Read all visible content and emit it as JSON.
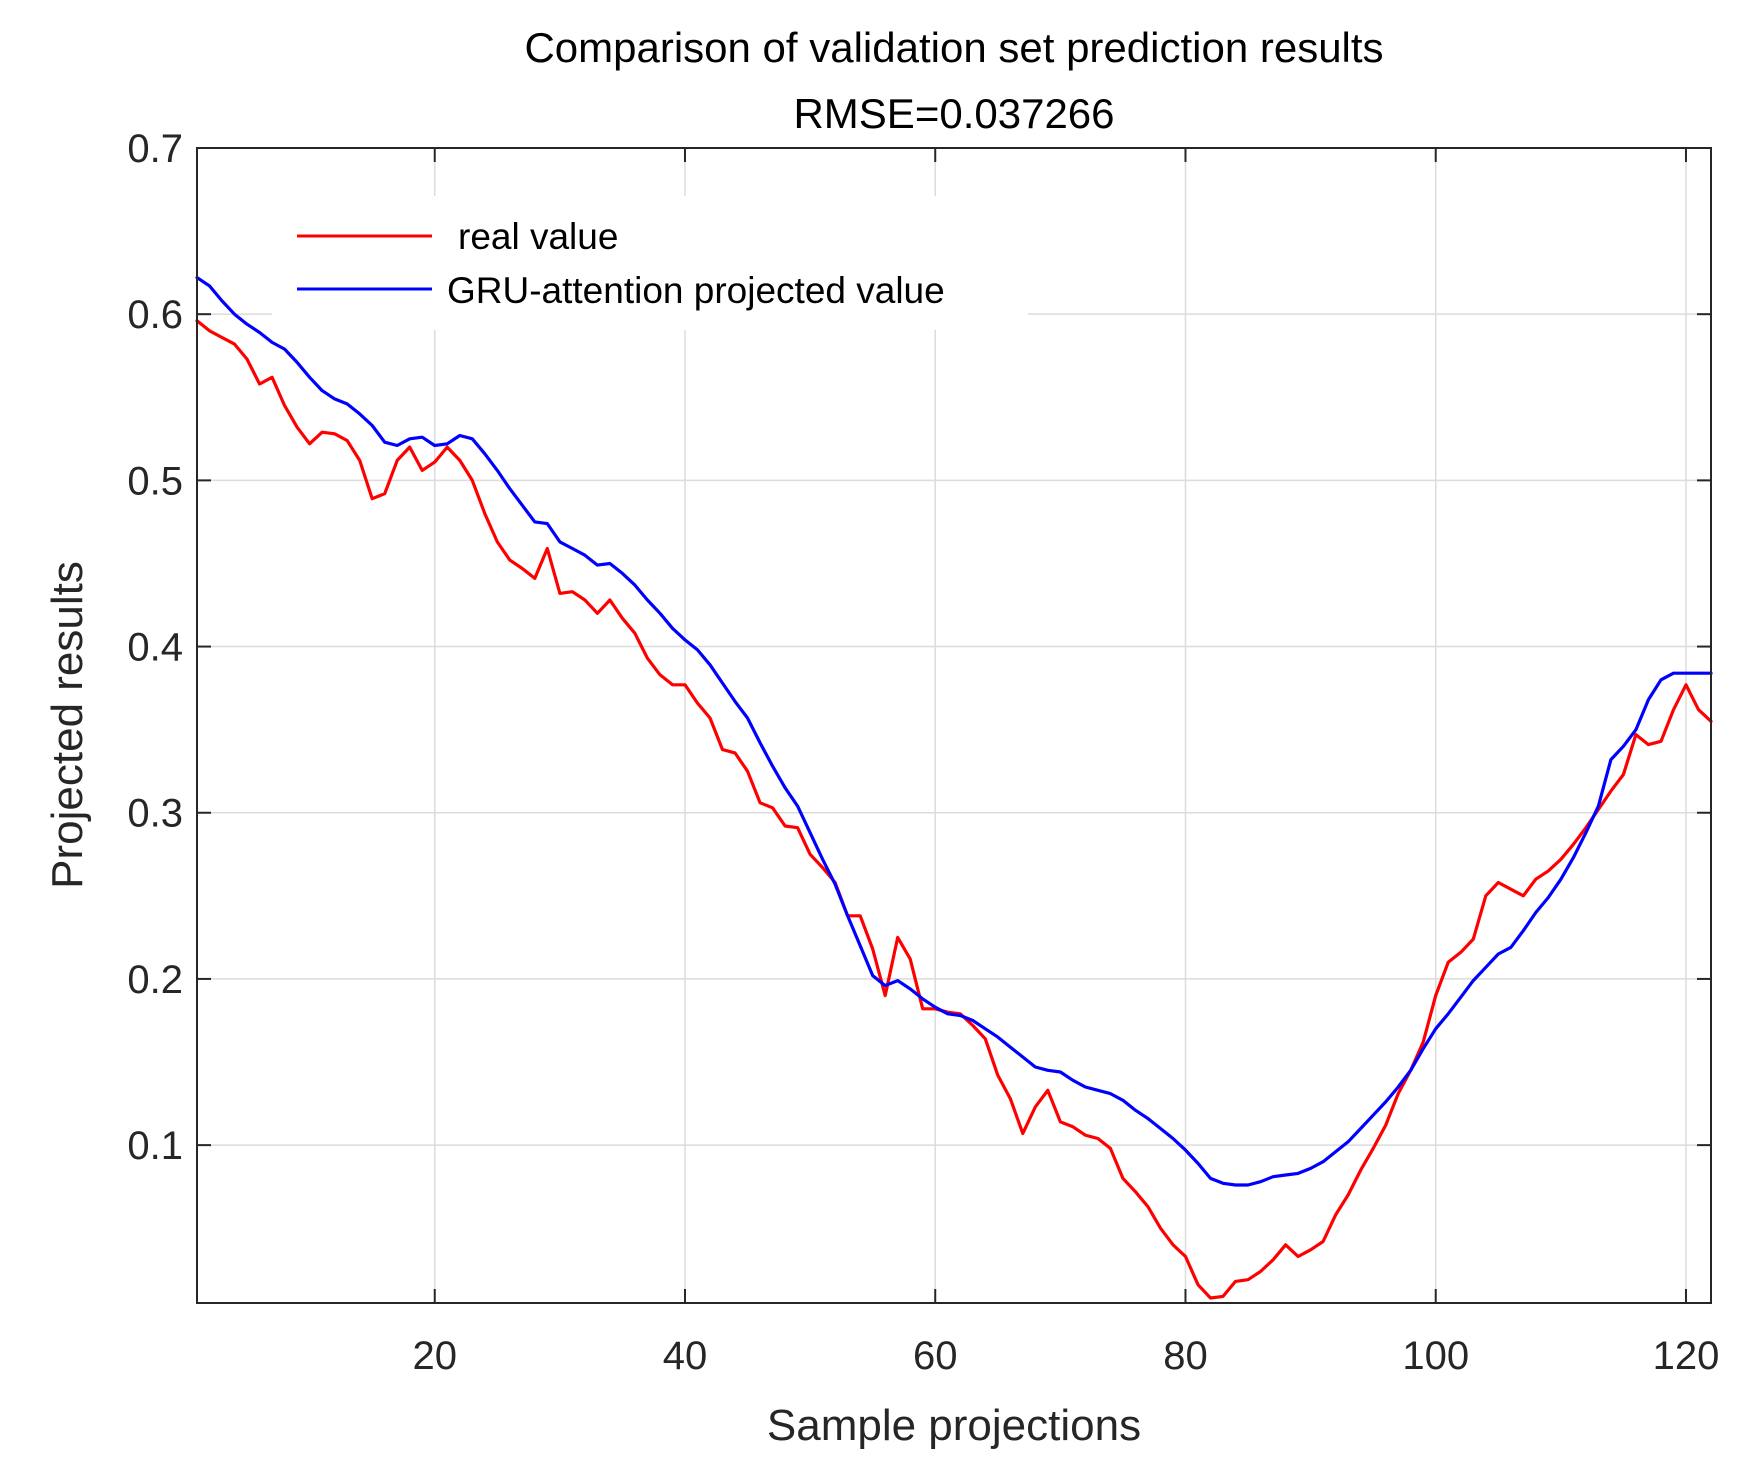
{
  "chart_data": {
    "type": "line",
    "title": "Comparison of validation set prediction results",
    "subtitle": "RMSE=0.037266",
    "xlabel": "Sample projections",
    "ylabel": "Projected results",
    "xlim": [
      1,
      122
    ],
    "ylim": [
      0.005,
      0.7
    ],
    "x_ticks": [
      20,
      40,
      60,
      80,
      100,
      120
    ],
    "y_ticks": [
      0.1,
      0.2,
      0.3,
      0.4,
      0.5,
      0.6,
      0.7
    ],
    "x_tick_labels": [
      "20",
      "40",
      "60",
      "80",
      "100",
      "120"
    ],
    "y_tick_labels": [
      "0.1",
      "0.2",
      "0.3",
      "0.4",
      "0.5",
      "0.6",
      "0.7"
    ],
    "grid": true,
    "legend_position": "top-left",
    "series": [
      {
        "name": "real value",
        "color": "#ff0000",
        "x": [
          1,
          2,
          3,
          4,
          5,
          6,
          7,
          8,
          9,
          10,
          11,
          12,
          13,
          14,
          15,
          16,
          17,
          18,
          19,
          20,
          21,
          22,
          23,
          24,
          25,
          26,
          27,
          28,
          29,
          30,
          31,
          32,
          33,
          34,
          35,
          36,
          37,
          38,
          39,
          40,
          41,
          42,
          43,
          44,
          45,
          46,
          47,
          48,
          49,
          50,
          51,
          52,
          53,
          54,
          55,
          56,
          57,
          58,
          59,
          60,
          61,
          62,
          63,
          64,
          65,
          66,
          67,
          68,
          69,
          70,
          71,
          72,
          73,
          74,
          75,
          76,
          77,
          78,
          79,
          80,
          81,
          82,
          83,
          84,
          85,
          86,
          87,
          88,
          89,
          90,
          91,
          92,
          93,
          94,
          95,
          96,
          97,
          98,
          99,
          100,
          101,
          102,
          103,
          104,
          105,
          106,
          107,
          108,
          109,
          110,
          111,
          112,
          113,
          114,
          115,
          116,
          117,
          118,
          119,
          120,
          121,
          122
        ],
        "values": [
          0.596,
          0.59,
          0.586,
          0.582,
          0.573,
          0.558,
          0.562,
          0.545,
          0.532,
          0.522,
          0.529,
          0.528,
          0.524,
          0.512,
          0.489,
          0.492,
          0.512,
          0.52,
          0.506,
          0.511,
          0.52,
          0.512,
          0.5,
          0.48,
          0.463,
          0.452,
          0.447,
          0.441,
          0.459,
          0.432,
          0.433,
          0.428,
          0.42,
          0.428,
          0.417,
          0.408,
          0.393,
          0.383,
          0.377,
          0.377,
          0.366,
          0.357,
          0.338,
          0.336,
          0.325,
          0.306,
          0.303,
          0.292,
          0.291,
          0.275,
          0.267,
          0.258,
          0.238,
          0.238,
          0.218,
          0.19,
          0.225,
          0.212,
          0.182,
          0.182,
          0.18,
          0.179,
          0.172,
          0.164,
          0.142,
          0.128,
          0.107,
          0.123,
          0.133,
          0.114,
          0.111,
          0.106,
          0.104,
          0.098,
          0.08,
          0.072,
          0.063,
          0.05,
          0.04,
          0.033,
          0.016,
          0.008,
          0.009,
          0.018,
          0.019,
          0.024,
          0.031,
          0.04,
          0.033,
          0.037,
          0.042,
          0.058,
          0.07,
          0.085,
          0.098,
          0.112,
          0.131,
          0.145,
          0.162,
          0.19,
          0.21,
          0.216,
          0.224,
          0.25,
          0.258,
          0.254,
          0.25,
          0.26,
          0.265,
          0.272,
          0.281,
          0.291,
          0.302,
          0.313,
          0.323,
          0.347,
          0.341,
          0.343,
          0.362,
          0.377,
          0.362,
          0.355
        ]
      },
      {
        "name": "GRU-attention projected value",
        "color": "#0000ff",
        "x": [
          1,
          2,
          3,
          4,
          5,
          6,
          7,
          8,
          9,
          10,
          11,
          12,
          13,
          14,
          15,
          16,
          17,
          18,
          19,
          20,
          21,
          22,
          23,
          24,
          25,
          26,
          27,
          28,
          29,
          30,
          31,
          32,
          33,
          34,
          35,
          36,
          37,
          38,
          39,
          40,
          41,
          42,
          43,
          44,
          45,
          46,
          47,
          48,
          49,
          50,
          51,
          52,
          53,
          54,
          55,
          56,
          57,
          58,
          59,
          60,
          61,
          62,
          63,
          64,
          65,
          66,
          67,
          68,
          69,
          70,
          71,
          72,
          73,
          74,
          75,
          76,
          77,
          78,
          79,
          80,
          81,
          82,
          83,
          84,
          85,
          86,
          87,
          88,
          89,
          90,
          91,
          92,
          93,
          94,
          95,
          96,
          97,
          98,
          99,
          100,
          101,
          102,
          103,
          104,
          105,
          106,
          107,
          108,
          109,
          110,
          111,
          112,
          113,
          114,
          115,
          116,
          117,
          118,
          119,
          120,
          121,
          122
        ],
        "values": [
          0.622,
          0.617,
          0.608,
          0.6,
          0.594,
          0.589,
          0.583,
          0.579,
          0.571,
          0.562,
          0.554,
          0.549,
          0.546,
          0.54,
          0.533,
          0.523,
          0.521,
          0.525,
          0.526,
          0.521,
          0.522,
          0.527,
          0.525,
          0.516,
          0.506,
          0.495,
          0.485,
          0.475,
          0.474,
          0.463,
          0.459,
          0.455,
          0.449,
          0.45,
          0.444,
          0.437,
          0.428,
          0.42,
          0.411,
          0.404,
          0.398,
          0.389,
          0.378,
          0.367,
          0.357,
          0.342,
          0.328,
          0.315,
          0.304,
          0.288,
          0.272,
          0.257,
          0.238,
          0.22,
          0.202,
          0.196,
          0.199,
          0.194,
          0.188,
          0.183,
          0.179,
          0.178,
          0.175,
          0.17,
          0.165,
          0.159,
          0.153,
          0.147,
          0.145,
          0.144,
          0.139,
          0.135,
          0.133,
          0.131,
          0.127,
          0.121,
          0.116,
          0.11,
          0.104,
          0.097,
          0.089,
          0.08,
          0.077,
          0.076,
          0.076,
          0.078,
          0.081,
          0.082,
          0.083,
          0.086,
          0.09,
          0.096,
          0.102,
          0.11,
          0.118,
          0.126,
          0.135,
          0.145,
          0.158,
          0.17,
          0.179,
          0.189,
          0.199,
          0.207,
          0.215,
          0.219,
          0.229,
          0.24,
          0.249,
          0.26,
          0.273,
          0.288,
          0.304,
          0.332,
          0.34,
          0.35,
          0.368,
          0.38,
          0.384,
          0.384,
          0.384,
          0.384
        ]
      }
    ]
  }
}
